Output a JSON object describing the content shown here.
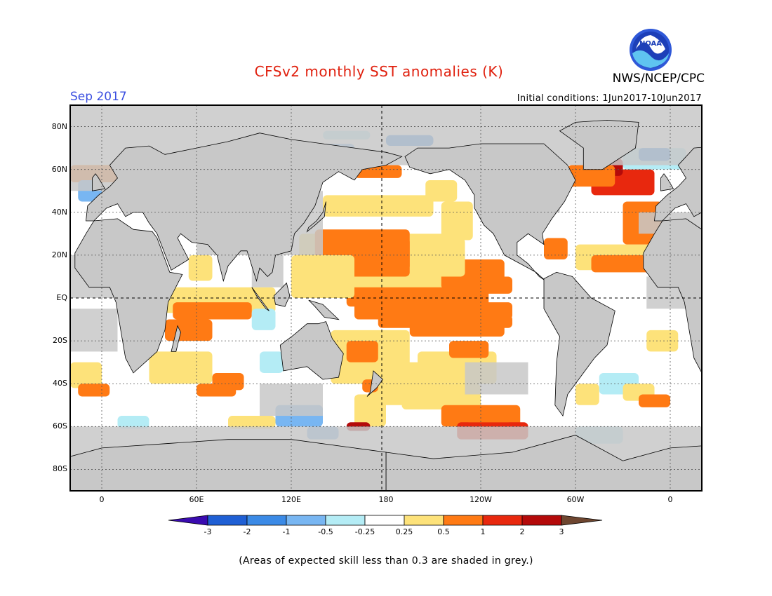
{
  "header": {
    "title": "CFSv2 monthly SST anomalies (K)",
    "org": "NWS/NCEP/CPC",
    "month": "Sep 2017",
    "initial_conditions": "Initial conditions: 1Jun2017-10Jun2017",
    "logo_text": "NOAA"
  },
  "map": {
    "projection": "equirectangular",
    "lon_range": [
      -20,
      380
    ],
    "lat_range": [
      -90,
      90
    ],
    "land_color": "#c8c8c8",
    "lat_labels": [
      "80N",
      "60N",
      "40N",
      "20N",
      "EQ",
      "20S",
      "40S",
      "60S",
      "80S"
    ],
    "lon_labels": [
      "0",
      "60E",
      "120E",
      "180",
      "120W",
      "60W",
      "0"
    ]
  },
  "colorbar": {
    "labels": [
      "-3",
      "-2",
      "-1",
      "-0.5",
      "-0.25",
      "0.25",
      "0.5",
      "1",
      "2",
      "3"
    ],
    "colors": [
      "#3a0bb0",
      "#1f5fd4",
      "#3b8ae6",
      "#78b6f2",
      "#b4ecf5",
      "#ffffff",
      "#fde27a",
      "#ff7a14",
      "#e8280e",
      "#b40a0a",
      "#6e4630"
    ]
  },
  "footer": {
    "note": "(Areas of expected skill less than 0.3 are shaded in grey.)"
  }
}
